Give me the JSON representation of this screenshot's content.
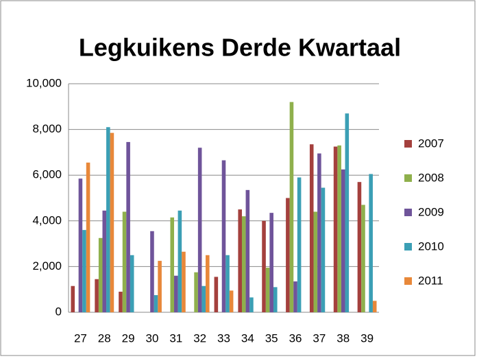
{
  "chart_data": {
    "type": "bar",
    "title": "Legkuikens Derde Kwartaal",
    "categories": [
      "27",
      "28",
      "29",
      "30",
      "31",
      "32",
      "33",
      "34",
      "35",
      "36",
      "37",
      "38",
      "39"
    ],
    "series": [
      {
        "name": "2007",
        "color": "#a4403d",
        "values": [
          1150,
          1450,
          900,
          0,
          0,
          0,
          1550,
          4500,
          4000,
          5000,
          7350,
          7250,
          5700
        ]
      },
      {
        "name": "2008",
        "color": "#8fb04c",
        "values": [
          0,
          3250,
          4400,
          0,
          4150,
          1750,
          0,
          4200,
          1950,
          9200,
          4400,
          7300,
          4700
        ]
      },
      {
        "name": "2009",
        "color": "#6f549a",
        "values": [
          5850,
          4450,
          7450,
          3550,
          1600,
          7200,
          6650,
          5350,
          4350,
          1350,
          6950,
          6250,
          0
        ]
      },
      {
        "name": "2010",
        "color": "#3b9fb5",
        "values": [
          3600,
          8100,
          2500,
          750,
          4450,
          1150,
          2500,
          650,
          1100,
          5900,
          5450,
          8700,
          6050
        ]
      },
      {
        "name": "2011",
        "color": "#e8883a",
        "values": [
          6550,
          7850,
          0,
          2250,
          2650,
          2500,
          950,
          0,
          0,
          0,
          0,
          0,
          500
        ]
      }
    ],
    "ylim": [
      0,
      10000
    ],
    "yticks": [
      0,
      {
        "value": 2000,
        "label": "2,000"
      },
      {
        "value": 4000,
        "label": "4,000"
      },
      {
        "value": 6000,
        "label": "6,000"
      },
      {
        "value": 8000,
        "label": "8,000"
      },
      {
        "value": 10000,
        "label": "10,000"
      }
    ],
    "grid": true,
    "legend": "right"
  }
}
